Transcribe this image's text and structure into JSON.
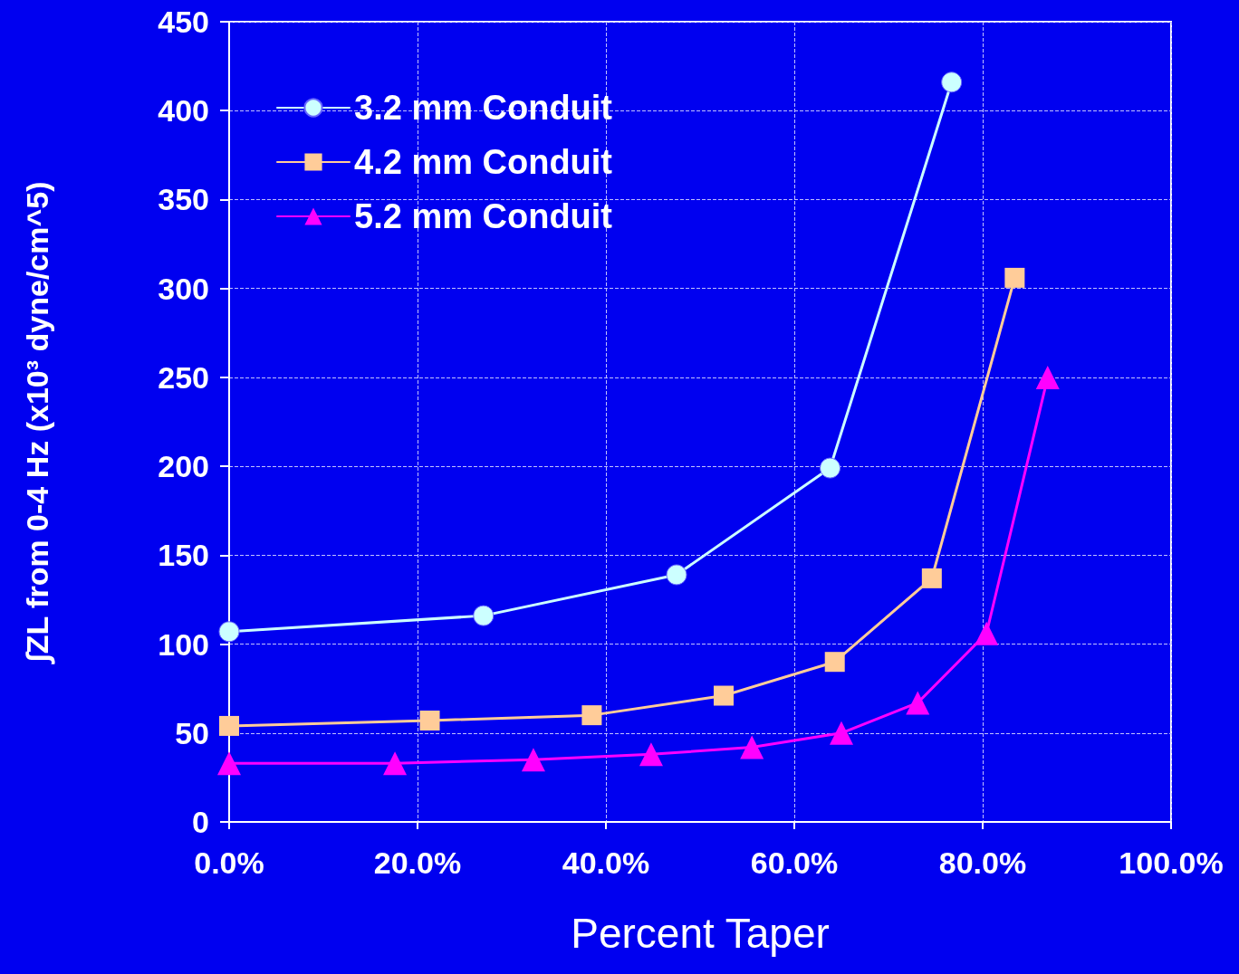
{
  "chart_data": {
    "type": "line",
    "xlabel": "Percent Taper",
    "ylabel": "∫ZL from 0-4 Hz (x10³ dyne/cm^5)",
    "xlim": [
      0,
      100
    ],
    "xticks": [
      {
        "value": 0,
        "label": "0.0%"
      },
      {
        "value": 20,
        "label": "20.0%"
      },
      {
        "value": 40,
        "label": "40.0%"
      },
      {
        "value": 60,
        "label": "60.0%"
      },
      {
        "value": 80,
        "label": "80.0%"
      },
      {
        "value": 100,
        "label": "100.0%"
      }
    ],
    "ylim": [
      0,
      450
    ],
    "yticks": [
      0,
      50,
      100,
      150,
      200,
      250,
      300,
      350,
      400,
      450
    ],
    "grid": true,
    "legend": "top left",
    "line_style": "solid",
    "series": [
      {
        "name": "3.2 mm Conduit",
        "color": "#ccffff",
        "marker": "circle",
        "x": [
          0,
          27,
          47.5,
          63.8,
          76.7
        ],
        "values": [
          107,
          116,
          139,
          199,
          416
        ]
      },
      {
        "name": "4.2 mm Conduit",
        "color": "#ffcc99",
        "marker": "square",
        "x": [
          0,
          21.3,
          38.5,
          52.5,
          64.3,
          74.6,
          83.4
        ],
        "values": [
          54,
          57,
          60,
          71,
          90,
          137,
          306
        ]
      },
      {
        "name": "5.2 mm Conduit",
        "color": "#ff00ff",
        "marker": "triangle",
        "x": [
          0,
          17.6,
          32.3,
          44.8,
          55.5,
          65,
          73.1,
          80.4,
          86.9
        ],
        "values": [
          33,
          33,
          35,
          38,
          42,
          50,
          67,
          106,
          250
        ]
      }
    ]
  }
}
